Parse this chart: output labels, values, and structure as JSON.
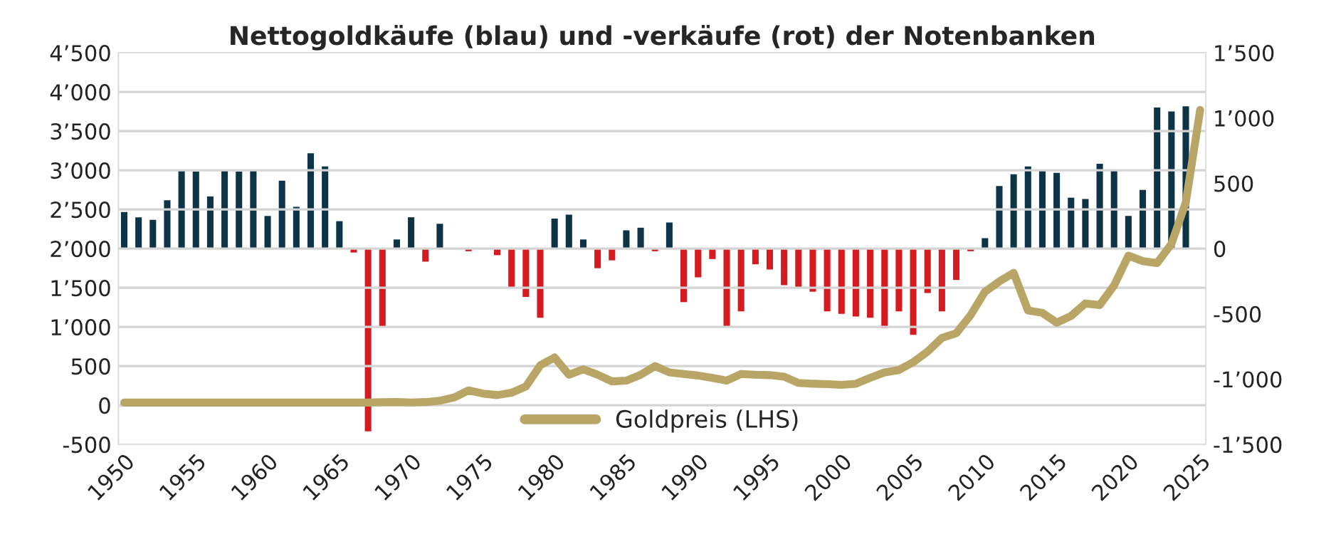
{
  "chart_data": {
    "type": "bar",
    "title": "Nettogoldkäufe (blau) und -verkäufe (rot) der Notenbanken",
    "x": [
      1950,
      1951,
      1952,
      1953,
      1954,
      1955,
      1956,
      1957,
      1958,
      1959,
      1960,
      1961,
      1962,
      1963,
      1964,
      1965,
      1966,
      1967,
      1968,
      1969,
      1970,
      1971,
      1972,
      1973,
      1974,
      1975,
      1976,
      1977,
      1978,
      1979,
      1980,
      1981,
      1982,
      1983,
      1984,
      1985,
      1986,
      1987,
      1988,
      1989,
      1990,
      1991,
      1992,
      1993,
      1994,
      1995,
      1996,
      1997,
      1998,
      1999,
      2000,
      2001,
      2002,
      2003,
      2004,
      2005,
      2006,
      2007,
      2008,
      2009,
      2010,
      2011,
      2012,
      2013,
      2014,
      2015,
      2016,
      2017,
      2018,
      2019,
      2020,
      2021,
      2022,
      2023,
      2024
    ],
    "series": [
      {
        "axis": "y2",
        "values": [
          280,
          240,
          220,
          370,
          600,
          590,
          400,
          600,
          590,
          600,
          250,
          520,
          320,
          730,
          630,
          210,
          -30,
          -1400,
          -600,
          70,
          240,
          -100,
          190,
          0,
          -20,
          0,
          -50,
          -300,
          -370,
          -530,
          230,
          260,
          70,
          -150,
          -90,
          140,
          160,
          -20,
          200,
          -410,
          -220,
          -80,
          -600,
          -480,
          -120,
          -160,
          -280,
          -300,
          -330,
          -480,
          -500,
          -520,
          -530,
          -610,
          -480,
          -660,
          -340,
          -480,
          -240,
          -20,
          80,
          480,
          570,
          630,
          600,
          580,
          390,
          380,
          650,
          600,
          250,
          450,
          1080,
          1050,
          1090
        ],
        "colors": [
          "#0d3346",
          "#0d3346",
          "#0d3346",
          "#0d3346",
          "#0d3346",
          "#0d3346",
          "#0d3346",
          "#0d3346",
          "#0d3346",
          "#0d3346",
          "#0d3346",
          "#0d3346",
          "#0d3346",
          "#0d3346",
          "#0d3346",
          "#0d3346",
          "#d51b1f",
          "#d51b1f",
          "#d51b1f",
          "#0d3346",
          "#0d3346",
          "#d51b1f",
          "#0d3346",
          "#0d3346",
          "#d51b1f",
          "#0d3346",
          "#d51b1f",
          "#d51b1f",
          "#d51b1f",
          "#d51b1f",
          "#0d3346",
          "#0d3346",
          "#0d3346",
          "#d51b1f",
          "#d51b1f",
          "#0d3346",
          "#0d3346",
          "#d51b1f",
          "#0d3346",
          "#d51b1f",
          "#d51b1f",
          "#d51b1f",
          "#d51b1f",
          "#d51b1f",
          "#d51b1f",
          "#d51b1f",
          "#d51b1f",
          "#d51b1f",
          "#d51b1f",
          "#d51b1f",
          "#d51b1f",
          "#d51b1f",
          "#d51b1f",
          "#d51b1f",
          "#d51b1f",
          "#d51b1f",
          "#d51b1f",
          "#d51b1f",
          "#d51b1f",
          "#d51b1f",
          "#0d3346",
          "#0d3346",
          "#0d3346",
          "#0d3346",
          "#0d3346",
          "#0d3346",
          "#0d3346",
          "#0d3346",
          "#0d3346",
          "#0d3346",
          "#0d3346",
          "#0d3346",
          "#0d3346",
          "#0d3346",
          "#0d3346"
        ]
      },
      {
        "type": "line",
        "name": "Goldpreis (LHS)",
        "color": "#b9a565",
        "x": [
          1950,
          1951,
          1952,
          1953,
          1954,
          1955,
          1956,
          1957,
          1958,
          1959,
          1960,
          1961,
          1962,
          1963,
          1964,
          1965,
          1966,
          1967,
          1968,
          1969,
          1970,
          1971,
          1972,
          1973,
          1974,
          1975,
          1976,
          1977,
          1978,
          1979,
          1980,
          1981,
          1982,
          1983,
          1984,
          1985,
          1986,
          1987,
          1988,
          1989,
          1990,
          1991,
          1992,
          1993,
          1994,
          1995,
          1996,
          1997,
          1998,
          1999,
          2000,
          2001,
          2002,
          2003,
          2004,
          2005,
          2006,
          2007,
          2008,
          2009,
          2010,
          2011,
          2012,
          2013,
          2014,
          2015,
          2016,
          2017,
          2018,
          2019,
          2020,
          2021,
          2022,
          2023,
          2024,
          2025
        ],
        "values": [
          35,
          35,
          35,
          35,
          35,
          35,
          35,
          35,
          35,
          35,
          35,
          35,
          35,
          35,
          35,
          35,
          35,
          35,
          39,
          41,
          36,
          41,
          58,
          100,
          190,
          150,
          130,
          160,
          240,
          510,
          610,
          390,
          460,
          390,
          305,
          315,
          390,
          500,
          420,
          400,
          380,
          350,
          315,
          400,
          390,
          385,
          365,
          285,
          275,
          270,
          260,
          275,
          350,
          420,
          450,
          550,
          685,
          860,
          920,
          1150,
          1450,
          1580,
          1690,
          1210,
          1180,
          1055,
          1140,
          1300,
          1280,
          1530,
          1910,
          1840,
          1815,
          2060,
          2590,
          3770
        ]
      }
    ],
    "xlim": [
      1949.6,
      2025.4
    ],
    "xticks": [
      1950,
      1955,
      1960,
      1965,
      1970,
      1975,
      1980,
      1985,
      1990,
      1995,
      2000,
      2005,
      2010,
      2015,
      2020,
      2025
    ],
    "ylim": [
      -500,
      4500
    ],
    "yticks": [
      {
        "value": -500,
        "label": "-500"
      },
      0,
      500,
      {
        "value": 1000,
        "label": "1’000"
      },
      {
        "value": 1500,
        "label": "1’500"
      },
      {
        "value": 2000,
        "label": "2’000"
      },
      {
        "value": 2500,
        "label": "2’500"
      },
      {
        "value": 3000,
        "label": "3’000"
      },
      {
        "value": 3500,
        "label": "3’500"
      },
      {
        "value": 4000,
        "label": "4’000"
      },
      {
        "value": 4500,
        "label": "4’500"
      }
    ],
    "y2lim": [
      -1500,
      1500
    ],
    "y2ticks": [
      {
        "value": -1500,
        "label": "-1’500"
      },
      {
        "value": -1000,
        "label": "-1’000"
      },
      {
        "value": -500,
        "label": "-500"
      },
      0,
      500,
      {
        "value": 1000,
        "label": "1’000"
      },
      {
        "value": 1500,
        "label": "1’500"
      }
    ],
    "grid": "y",
    "legend": "bottom"
  }
}
